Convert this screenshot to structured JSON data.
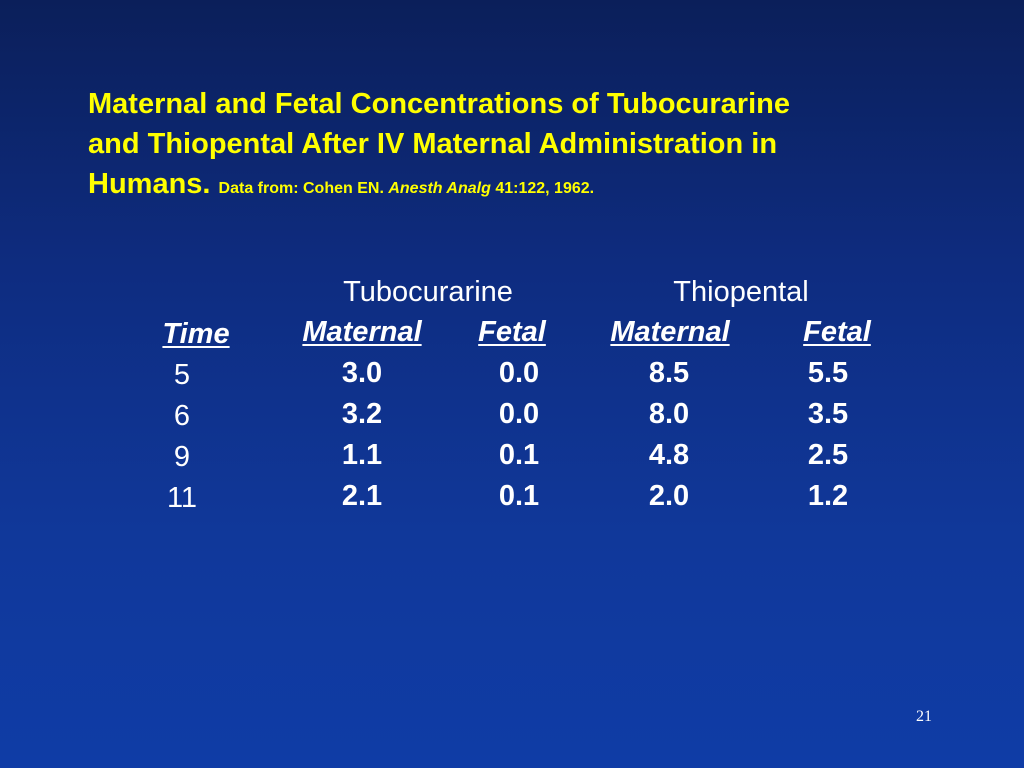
{
  "title": {
    "line1": "Maternal and Fetal Concentrations of Tubocurarine",
    "line2": "and Thiopental After IV Maternal Administration in",
    "line3": "Humans.",
    "citation_prefix": "Data from: Cohen EN.",
    "citation_journal": "Anesth Analg",
    "citation_suffix": "41:122, 1962."
  },
  "table": {
    "group_headers": [
      "Tubocurarine",
      "Thiopental"
    ],
    "sub_headers": [
      "Time",
      "Maternal",
      "Fetal",
      "Maternal",
      "Fetal"
    ],
    "rows": [
      [
        "5",
        "3.0",
        "0.0",
        "8.5",
        "5.5"
      ],
      [
        "6",
        "3.2",
        "0.0",
        "8.0",
        "3.5"
      ],
      [
        "9",
        "1.1",
        "0.1",
        "4.8",
        "2.5"
      ],
      [
        "11",
        "2.1",
        "0.1",
        "2.0",
        "1.2"
      ]
    ]
  },
  "slide_number": "21"
}
